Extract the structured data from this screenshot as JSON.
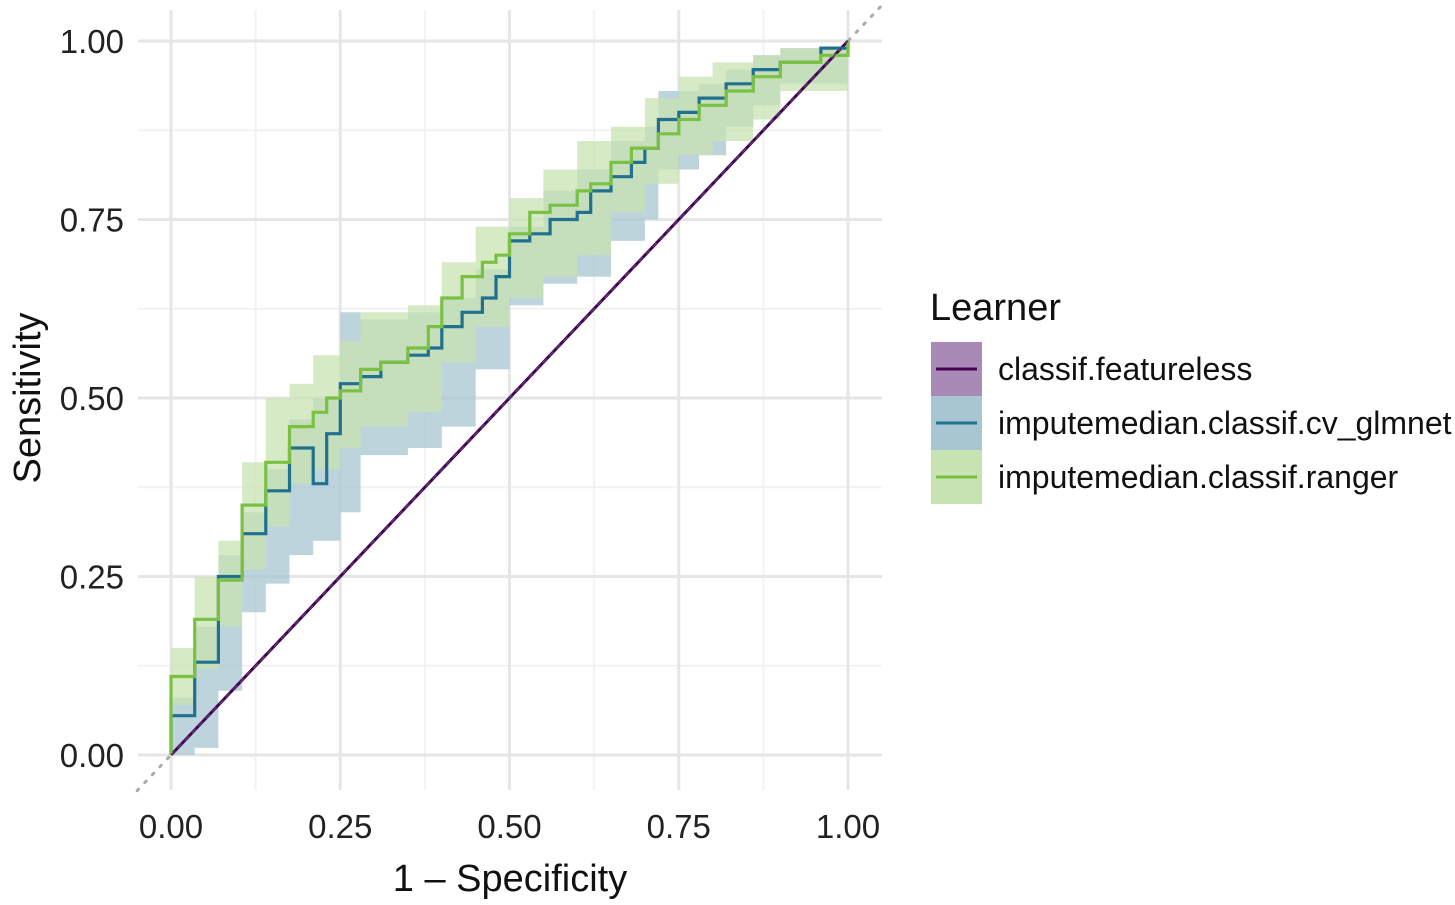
{
  "chart_data": {
    "type": "line",
    "title": "",
    "xlabel": "1 – Specificity",
    "ylabel": "Sensitivity",
    "xlim": [
      -0.05,
      1.05
    ],
    "ylim": [
      -0.05,
      1.05
    ],
    "x_ticks": [
      "0.00",
      "0.25",
      "0.50",
      "0.75",
      "1.00"
    ],
    "y_ticks": [
      "0.00",
      "0.25",
      "0.50",
      "0.75",
      "1.00"
    ],
    "x_tick_values": [
      0,
      0.25,
      0.5,
      0.75,
      1.0
    ],
    "y_tick_values": [
      0,
      0.25,
      0.5,
      0.75,
      1.0
    ],
    "grid": true,
    "reference_line": "diagonal dotted",
    "legend": {
      "title": "Learner",
      "position": "right"
    },
    "series": [
      {
        "name": "classif.featureless",
        "color": "#440154",
        "fill": "#a98ab7",
        "points": [
          [
            0,
            0
          ],
          [
            1,
            1
          ]
        ],
        "band_upper": [
          [
            0,
            0
          ],
          [
            1,
            1
          ]
        ],
        "band_lower": [
          [
            0,
            0
          ],
          [
            1,
            1
          ]
        ]
      },
      {
        "name": "imputemedian.classif.cv_glmnet",
        "color": "#21708e",
        "fill": "#a8c6d1",
        "points": [
          [
            0,
            0
          ],
          [
            0,
            0.055
          ],
          [
            0.035,
            0.055
          ],
          [
            0.035,
            0.13
          ],
          [
            0.07,
            0.13
          ],
          [
            0.07,
            0.25
          ],
          [
            0.105,
            0.25
          ],
          [
            0.105,
            0.31
          ],
          [
            0.14,
            0.31
          ],
          [
            0.14,
            0.37
          ],
          [
            0.175,
            0.37
          ],
          [
            0.175,
            0.43
          ],
          [
            0.21,
            0.43
          ],
          [
            0.21,
            0.38
          ],
          [
            0.23,
            0.38
          ],
          [
            0.23,
            0.45
          ],
          [
            0.25,
            0.45
          ],
          [
            0.25,
            0.52
          ],
          [
            0.28,
            0.52
          ],
          [
            0.28,
            0.53
          ],
          [
            0.31,
            0.53
          ],
          [
            0.31,
            0.55
          ],
          [
            0.35,
            0.55
          ],
          [
            0.35,
            0.56
          ],
          [
            0.38,
            0.56
          ],
          [
            0.38,
            0.57
          ],
          [
            0.4,
            0.57
          ],
          [
            0.4,
            0.6
          ],
          [
            0.43,
            0.6
          ],
          [
            0.43,
            0.62
          ],
          [
            0.46,
            0.62
          ],
          [
            0.46,
            0.64
          ],
          [
            0.48,
            0.64
          ],
          [
            0.48,
            0.67
          ],
          [
            0.5,
            0.67
          ],
          [
            0.5,
            0.72
          ],
          [
            0.53,
            0.72
          ],
          [
            0.53,
            0.73
          ],
          [
            0.56,
            0.73
          ],
          [
            0.56,
            0.75
          ],
          [
            0.6,
            0.75
          ],
          [
            0.6,
            0.76
          ],
          [
            0.62,
            0.76
          ],
          [
            0.62,
            0.79
          ],
          [
            0.65,
            0.79
          ],
          [
            0.65,
            0.81
          ],
          [
            0.68,
            0.81
          ],
          [
            0.68,
            0.83
          ],
          [
            0.7,
            0.83
          ],
          [
            0.7,
            0.85
          ],
          [
            0.72,
            0.85
          ],
          [
            0.72,
            0.89
          ],
          [
            0.75,
            0.89
          ],
          [
            0.75,
            0.9
          ],
          [
            0.78,
            0.9
          ],
          [
            0.78,
            0.92
          ],
          [
            0.82,
            0.92
          ],
          [
            0.82,
            0.94
          ],
          [
            0.86,
            0.94
          ],
          [
            0.86,
            0.96
          ],
          [
            0.9,
            0.96
          ],
          [
            0.9,
            0.97
          ],
          [
            0.96,
            0.97
          ],
          [
            0.96,
            0.99
          ],
          [
            1.0,
            0.99
          ],
          [
            1.0,
            1.0
          ]
        ],
        "band_upper": [
          [
            0,
            0.08
          ],
          [
            0.035,
            0.18
          ],
          [
            0.07,
            0.28
          ],
          [
            0.105,
            0.34
          ],
          [
            0.14,
            0.4
          ],
          [
            0.175,
            0.47
          ],
          [
            0.21,
            0.5
          ],
          [
            0.25,
            0.62
          ],
          [
            0.28,
            0.61
          ],
          [
            0.35,
            0.62
          ],
          [
            0.4,
            0.64
          ],
          [
            0.45,
            0.68
          ],
          [
            0.5,
            0.74
          ],
          [
            0.55,
            0.79
          ],
          [
            0.6,
            0.82
          ],
          [
            0.65,
            0.86
          ],
          [
            0.7,
            0.88
          ],
          [
            0.72,
            0.93
          ],
          [
            0.78,
            0.94
          ],
          [
            0.82,
            0.96
          ],
          [
            0.86,
            0.98
          ],
          [
            0.9,
            0.99
          ],
          [
            1.0,
            1.0
          ]
        ],
        "band_lower": [
          [
            0,
            0.0
          ],
          [
            0.035,
            0.01
          ],
          [
            0.07,
            0.09
          ],
          [
            0.105,
            0.2
          ],
          [
            0.14,
            0.24
          ],
          [
            0.175,
            0.28
          ],
          [
            0.21,
            0.3
          ],
          [
            0.25,
            0.34
          ],
          [
            0.28,
            0.42
          ],
          [
            0.35,
            0.43
          ],
          [
            0.4,
            0.46
          ],
          [
            0.45,
            0.54
          ],
          [
            0.5,
            0.63
          ],
          [
            0.55,
            0.66
          ],
          [
            0.6,
            0.67
          ],
          [
            0.65,
            0.72
          ],
          [
            0.7,
            0.75
          ],
          [
            0.72,
            0.82
          ],
          [
            0.78,
            0.84
          ],
          [
            0.82,
            0.88
          ],
          [
            0.86,
            0.91
          ],
          [
            0.9,
            0.94
          ],
          [
            1.0,
            0.97
          ]
        ]
      },
      {
        "name": "imputemedian.classif.ranger",
        "color": "#7ac143",
        "fill": "#c7e3b2",
        "points": [
          [
            0,
            0
          ],
          [
            0,
            0.11
          ],
          [
            0.035,
            0.11
          ],
          [
            0.035,
            0.19
          ],
          [
            0.07,
            0.19
          ],
          [
            0.07,
            0.245
          ],
          [
            0.105,
            0.245
          ],
          [
            0.105,
            0.35
          ],
          [
            0.14,
            0.35
          ],
          [
            0.14,
            0.41
          ],
          [
            0.175,
            0.41
          ],
          [
            0.175,
            0.46
          ],
          [
            0.21,
            0.46
          ],
          [
            0.21,
            0.48
          ],
          [
            0.23,
            0.48
          ],
          [
            0.23,
            0.5
          ],
          [
            0.25,
            0.5
          ],
          [
            0.25,
            0.51
          ],
          [
            0.28,
            0.51
          ],
          [
            0.28,
            0.54
          ],
          [
            0.31,
            0.54
          ],
          [
            0.31,
            0.55
          ],
          [
            0.35,
            0.55
          ],
          [
            0.35,
            0.57
          ],
          [
            0.38,
            0.57
          ],
          [
            0.38,
            0.6
          ],
          [
            0.4,
            0.6
          ],
          [
            0.4,
            0.64
          ],
          [
            0.43,
            0.64
          ],
          [
            0.43,
            0.67
          ],
          [
            0.46,
            0.67
          ],
          [
            0.46,
            0.69
          ],
          [
            0.48,
            0.69
          ],
          [
            0.48,
            0.7
          ],
          [
            0.5,
            0.7
          ],
          [
            0.5,
            0.73
          ],
          [
            0.53,
            0.73
          ],
          [
            0.53,
            0.76
          ],
          [
            0.56,
            0.76
          ],
          [
            0.56,
            0.77
          ],
          [
            0.6,
            0.77
          ],
          [
            0.6,
            0.79
          ],
          [
            0.62,
            0.79
          ],
          [
            0.62,
            0.8
          ],
          [
            0.65,
            0.8
          ],
          [
            0.65,
            0.83
          ],
          [
            0.68,
            0.83
          ],
          [
            0.68,
            0.85
          ],
          [
            0.72,
            0.85
          ],
          [
            0.72,
            0.87
          ],
          [
            0.75,
            0.87
          ],
          [
            0.75,
            0.89
          ],
          [
            0.78,
            0.89
          ],
          [
            0.78,
            0.91
          ],
          [
            0.82,
            0.91
          ],
          [
            0.82,
            0.93
          ],
          [
            0.86,
            0.93
          ],
          [
            0.86,
            0.95
          ],
          [
            0.9,
            0.95
          ],
          [
            0.9,
            0.97
          ],
          [
            0.96,
            0.97
          ],
          [
            0.96,
            0.98
          ],
          [
            1.0,
            0.98
          ],
          [
            1.0,
            1.0
          ]
        ],
        "band_upper": [
          [
            0,
            0.15
          ],
          [
            0.035,
            0.25
          ],
          [
            0.07,
            0.3
          ],
          [
            0.105,
            0.41
          ],
          [
            0.14,
            0.5
          ],
          [
            0.175,
            0.52
          ],
          [
            0.21,
            0.56
          ],
          [
            0.25,
            0.58
          ],
          [
            0.28,
            0.62
          ],
          [
            0.35,
            0.63
          ],
          [
            0.4,
            0.69
          ],
          [
            0.45,
            0.74
          ],
          [
            0.5,
            0.78
          ],
          [
            0.55,
            0.82
          ],
          [
            0.6,
            0.86
          ],
          [
            0.65,
            0.88
          ],
          [
            0.7,
            0.92
          ],
          [
            0.75,
            0.95
          ],
          [
            0.8,
            0.97
          ],
          [
            0.86,
            0.98
          ],
          [
            0.9,
            0.99
          ],
          [
            1.0,
            1.0
          ]
        ],
        "band_lower": [
          [
            0,
            0.07
          ],
          [
            0.035,
            0.12
          ],
          [
            0.07,
            0.18
          ],
          [
            0.105,
            0.26
          ],
          [
            0.14,
            0.32
          ],
          [
            0.175,
            0.38
          ],
          [
            0.21,
            0.4
          ],
          [
            0.25,
            0.43
          ],
          [
            0.28,
            0.46
          ],
          [
            0.35,
            0.48
          ],
          [
            0.4,
            0.55
          ],
          [
            0.45,
            0.6
          ],
          [
            0.5,
            0.64
          ],
          [
            0.55,
            0.67
          ],
          [
            0.6,
            0.7
          ],
          [
            0.65,
            0.76
          ],
          [
            0.7,
            0.8
          ],
          [
            0.75,
            0.84
          ],
          [
            0.8,
            0.86
          ],
          [
            0.86,
            0.89
          ],
          [
            0.9,
            0.93
          ],
          [
            1.0,
            0.97
          ]
        ]
      }
    ]
  }
}
